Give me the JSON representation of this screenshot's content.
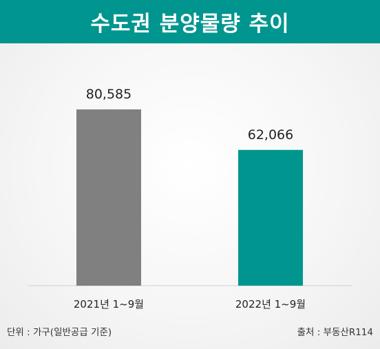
{
  "title": "수도권 분양물량 추이",
  "colors": {
    "title_bg": "#00968f",
    "bar_2021": "#808080",
    "bar_2022": "#00968f"
  },
  "chart_data": {
    "type": "bar",
    "categories": [
      "2021년 1~9월",
      "2022년 1~9월"
    ],
    "values": [
      80585,
      62066
    ],
    "value_labels": [
      "80,585",
      "62,066"
    ],
    "ylim": [
      0,
      90000
    ],
    "grid": false,
    "legend": "none"
  },
  "footer": {
    "unit_note": "단위 : 가구(일반공급 기준)",
    "source_note": "출처 : 부동산R114"
  }
}
